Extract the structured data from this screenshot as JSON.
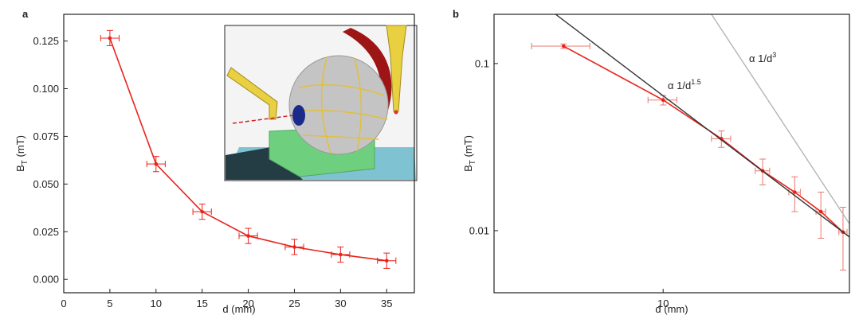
{
  "chart_data": [
    {
      "type": "line",
      "title": "a",
      "x_label": "d (mm)",
      "y_label": {
        "main": "B",
        "sub": "T",
        "unit": " (mT)"
      },
      "xlim": [
        0,
        38
      ],
      "ylim": [
        -0.007,
        0.139
      ],
      "xticks": [
        0,
        5,
        10,
        15,
        20,
        25,
        30,
        35
      ],
      "yticks": [
        {
          "value": 0,
          "label": "0.000"
        },
        0.025,
        {
          "value": 0.05,
          "label": "0.050"
        },
        {
          "value": 0.075,
          "label": "0.075"
        },
        {
          "value": 0.1,
          "label": "0.100"
        },
        0.125
      ],
      "log": false,
      "series": [
        {
          "color": "#e8231c",
          "x": [
            5,
            10,
            15,
            20,
            25,
            30,
            35
          ],
          "values": [
            0.1265,
            0.0605,
            0.0355,
            0.0228,
            0.017,
            0.013,
            0.0098
          ],
          "x_err": [
            1,
            1,
            1,
            1,
            1,
            1,
            1
          ],
          "y_err": [
            0.004,
            0.004,
            0.004,
            0.004,
            0.004,
            0.004,
            0.004
          ]
        }
      ]
    },
    {
      "type": "line",
      "title": "b",
      "x_label": "d (mm)",
      "y_label": {
        "main": "B",
        "sub": "T",
        "unit": " (mT)"
      },
      "xlim": [
        3.08,
        36.6
      ],
      "ylim": [
        0.00425,
        0.197
      ],
      "xticks": [
        10
      ],
      "yticks": [
        0.01,
        0.1
      ],
      "log": true,
      "series": [
        {
          "color": "#e8231c",
          "x": [
            5,
            10,
            15,
            20,
            25,
            30,
            35
          ],
          "values": [
            0.127,
            0.0605,
            0.0355,
            0.0228,
            0.017,
            0.013,
            0.0098
          ],
          "x_err": [
            1,
            1,
            1,
            1,
            1,
            1,
            1
          ],
          "y_err": [
            0.004,
            0.004,
            0.004,
            0.004,
            0.004,
            0.004,
            0.004
          ]
        },
        {
          "color": "#333333",
          "x": [
            4.73,
            36.6
          ],
          "values": [
            0.197,
            0.00916
          ],
          "label": {
            "text": "α 1/d",
            "sup": "1.5"
          }
        },
        {
          "color": "#b4b4b4",
          "x": [
            14.0,
            36.6
          ],
          "values": [
            0.197,
            0.011
          ],
          "label": {
            "text": "α 1/d",
            "sup": "3"
          }
        }
      ]
    }
  ]
}
